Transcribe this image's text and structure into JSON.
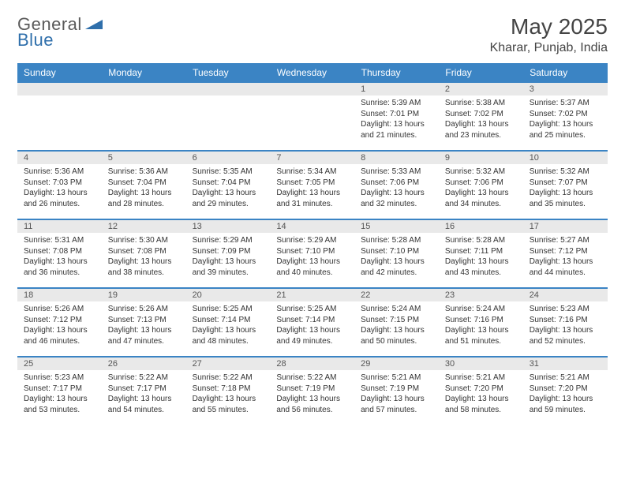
{
  "brand": {
    "name_part1": "General",
    "name_part2": "Blue"
  },
  "title": "May 2025",
  "location": "Kharar, Punjab, India",
  "colors": {
    "header_bg": "#3b84c4",
    "header_fg": "#ffffff",
    "daynum_bg": "#e9e9e9",
    "text": "#333333",
    "rule": "#3b84c4",
    "page_bg": "#ffffff"
  },
  "typography": {
    "title_fontsize": 28,
    "location_fontsize": 16,
    "dayheader_fontsize": 12,
    "cell_fontsize": 10
  },
  "day_headers": [
    "Sunday",
    "Monday",
    "Tuesday",
    "Wednesday",
    "Thursday",
    "Friday",
    "Saturday"
  ],
  "weeks": [
    [
      {
        "num": "",
        "sunrise": "",
        "sunset": "",
        "daylight1": "",
        "daylight2": ""
      },
      {
        "num": "",
        "sunrise": "",
        "sunset": "",
        "daylight1": "",
        "daylight2": ""
      },
      {
        "num": "",
        "sunrise": "",
        "sunset": "",
        "daylight1": "",
        "daylight2": ""
      },
      {
        "num": "",
        "sunrise": "",
        "sunset": "",
        "daylight1": "",
        "daylight2": ""
      },
      {
        "num": "1",
        "sunrise": "Sunrise: 5:39 AM",
        "sunset": "Sunset: 7:01 PM",
        "daylight1": "Daylight: 13 hours",
        "daylight2": "and 21 minutes."
      },
      {
        "num": "2",
        "sunrise": "Sunrise: 5:38 AM",
        "sunset": "Sunset: 7:02 PM",
        "daylight1": "Daylight: 13 hours",
        "daylight2": "and 23 minutes."
      },
      {
        "num": "3",
        "sunrise": "Sunrise: 5:37 AM",
        "sunset": "Sunset: 7:02 PM",
        "daylight1": "Daylight: 13 hours",
        "daylight2": "and 25 minutes."
      }
    ],
    [
      {
        "num": "4",
        "sunrise": "Sunrise: 5:36 AM",
        "sunset": "Sunset: 7:03 PM",
        "daylight1": "Daylight: 13 hours",
        "daylight2": "and 26 minutes."
      },
      {
        "num": "5",
        "sunrise": "Sunrise: 5:36 AM",
        "sunset": "Sunset: 7:04 PM",
        "daylight1": "Daylight: 13 hours",
        "daylight2": "and 28 minutes."
      },
      {
        "num": "6",
        "sunrise": "Sunrise: 5:35 AM",
        "sunset": "Sunset: 7:04 PM",
        "daylight1": "Daylight: 13 hours",
        "daylight2": "and 29 minutes."
      },
      {
        "num": "7",
        "sunrise": "Sunrise: 5:34 AM",
        "sunset": "Sunset: 7:05 PM",
        "daylight1": "Daylight: 13 hours",
        "daylight2": "and 31 minutes."
      },
      {
        "num": "8",
        "sunrise": "Sunrise: 5:33 AM",
        "sunset": "Sunset: 7:06 PM",
        "daylight1": "Daylight: 13 hours",
        "daylight2": "and 32 minutes."
      },
      {
        "num": "9",
        "sunrise": "Sunrise: 5:32 AM",
        "sunset": "Sunset: 7:06 PM",
        "daylight1": "Daylight: 13 hours",
        "daylight2": "and 34 minutes."
      },
      {
        "num": "10",
        "sunrise": "Sunrise: 5:32 AM",
        "sunset": "Sunset: 7:07 PM",
        "daylight1": "Daylight: 13 hours",
        "daylight2": "and 35 minutes."
      }
    ],
    [
      {
        "num": "11",
        "sunrise": "Sunrise: 5:31 AM",
        "sunset": "Sunset: 7:08 PM",
        "daylight1": "Daylight: 13 hours",
        "daylight2": "and 36 minutes."
      },
      {
        "num": "12",
        "sunrise": "Sunrise: 5:30 AM",
        "sunset": "Sunset: 7:08 PM",
        "daylight1": "Daylight: 13 hours",
        "daylight2": "and 38 minutes."
      },
      {
        "num": "13",
        "sunrise": "Sunrise: 5:29 AM",
        "sunset": "Sunset: 7:09 PM",
        "daylight1": "Daylight: 13 hours",
        "daylight2": "and 39 minutes."
      },
      {
        "num": "14",
        "sunrise": "Sunrise: 5:29 AM",
        "sunset": "Sunset: 7:10 PM",
        "daylight1": "Daylight: 13 hours",
        "daylight2": "and 40 minutes."
      },
      {
        "num": "15",
        "sunrise": "Sunrise: 5:28 AM",
        "sunset": "Sunset: 7:10 PM",
        "daylight1": "Daylight: 13 hours",
        "daylight2": "and 42 minutes."
      },
      {
        "num": "16",
        "sunrise": "Sunrise: 5:28 AM",
        "sunset": "Sunset: 7:11 PM",
        "daylight1": "Daylight: 13 hours",
        "daylight2": "and 43 minutes."
      },
      {
        "num": "17",
        "sunrise": "Sunrise: 5:27 AM",
        "sunset": "Sunset: 7:12 PM",
        "daylight1": "Daylight: 13 hours",
        "daylight2": "and 44 minutes."
      }
    ],
    [
      {
        "num": "18",
        "sunrise": "Sunrise: 5:26 AM",
        "sunset": "Sunset: 7:12 PM",
        "daylight1": "Daylight: 13 hours",
        "daylight2": "and 46 minutes."
      },
      {
        "num": "19",
        "sunrise": "Sunrise: 5:26 AM",
        "sunset": "Sunset: 7:13 PM",
        "daylight1": "Daylight: 13 hours",
        "daylight2": "and 47 minutes."
      },
      {
        "num": "20",
        "sunrise": "Sunrise: 5:25 AM",
        "sunset": "Sunset: 7:14 PM",
        "daylight1": "Daylight: 13 hours",
        "daylight2": "and 48 minutes."
      },
      {
        "num": "21",
        "sunrise": "Sunrise: 5:25 AM",
        "sunset": "Sunset: 7:14 PM",
        "daylight1": "Daylight: 13 hours",
        "daylight2": "and 49 minutes."
      },
      {
        "num": "22",
        "sunrise": "Sunrise: 5:24 AM",
        "sunset": "Sunset: 7:15 PM",
        "daylight1": "Daylight: 13 hours",
        "daylight2": "and 50 minutes."
      },
      {
        "num": "23",
        "sunrise": "Sunrise: 5:24 AM",
        "sunset": "Sunset: 7:16 PM",
        "daylight1": "Daylight: 13 hours",
        "daylight2": "and 51 minutes."
      },
      {
        "num": "24",
        "sunrise": "Sunrise: 5:23 AM",
        "sunset": "Sunset: 7:16 PM",
        "daylight1": "Daylight: 13 hours",
        "daylight2": "and 52 minutes."
      }
    ],
    [
      {
        "num": "25",
        "sunrise": "Sunrise: 5:23 AM",
        "sunset": "Sunset: 7:17 PM",
        "daylight1": "Daylight: 13 hours",
        "daylight2": "and 53 minutes."
      },
      {
        "num": "26",
        "sunrise": "Sunrise: 5:22 AM",
        "sunset": "Sunset: 7:17 PM",
        "daylight1": "Daylight: 13 hours",
        "daylight2": "and 54 minutes."
      },
      {
        "num": "27",
        "sunrise": "Sunrise: 5:22 AM",
        "sunset": "Sunset: 7:18 PM",
        "daylight1": "Daylight: 13 hours",
        "daylight2": "and 55 minutes."
      },
      {
        "num": "28",
        "sunrise": "Sunrise: 5:22 AM",
        "sunset": "Sunset: 7:19 PM",
        "daylight1": "Daylight: 13 hours",
        "daylight2": "and 56 minutes."
      },
      {
        "num": "29",
        "sunrise": "Sunrise: 5:21 AM",
        "sunset": "Sunset: 7:19 PM",
        "daylight1": "Daylight: 13 hours",
        "daylight2": "and 57 minutes."
      },
      {
        "num": "30",
        "sunrise": "Sunrise: 5:21 AM",
        "sunset": "Sunset: 7:20 PM",
        "daylight1": "Daylight: 13 hours",
        "daylight2": "and 58 minutes."
      },
      {
        "num": "31",
        "sunrise": "Sunrise: 5:21 AM",
        "sunset": "Sunset: 7:20 PM",
        "daylight1": "Daylight: 13 hours",
        "daylight2": "and 59 minutes."
      }
    ]
  ]
}
